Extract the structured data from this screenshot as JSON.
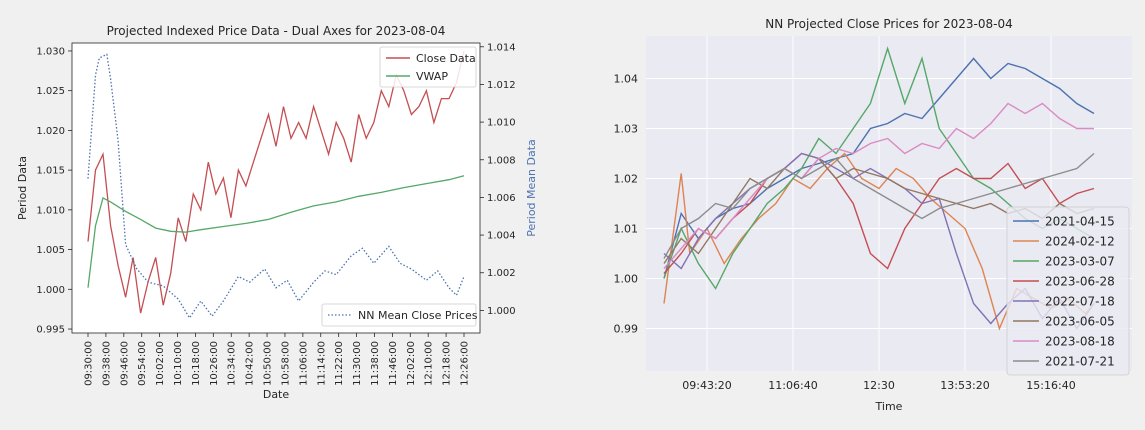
{
  "chart_data": [
    {
      "type": "line",
      "title": "Projected Indexed Price Data  - Dual Axes for 2023-08-04",
      "xlabel": "Date",
      "ylabel": "Period Data",
      "ylabel_right": "Period Mean Data",
      "ylim": [
        0.9945,
        1.031
      ],
      "ylim_right": [
        0.9988,
        1.0142
      ],
      "grid": false,
      "xtick_labels": [
        "09:30:00",
        "09:38:00",
        "09:46:00",
        "09:54:00",
        "10:02:00",
        "10:10:00",
        "10:18:00",
        "10:26:00",
        "10:34:00",
        "10:42:00",
        "10:50:00",
        "10:58:00",
        "11:06:00",
        "11:14:00",
        "11:22:00",
        "11:30:00",
        "11:38:00",
        "11:46:00",
        "12:02:00",
        "12:10:00",
        "12:18:00",
        "12:26:00"
      ],
      "ytick_labels": [
        "0.995",
        "1.000",
        "1.005",
        "1.010",
        "1.015",
        "1.020",
        "1.025",
        "1.030"
      ],
      "ytick_values": [
        0.995,
        1.0,
        1.005,
        1.01,
        1.015,
        1.02,
        1.025,
        1.03
      ],
      "ytick_right_labels": [
        "1.000",
        "1.002",
        "1.004",
        "1.006",
        "1.008",
        "1.010",
        "1.012",
        "1.014"
      ],
      "ytick_right_values": [
        1.0,
        1.002,
        1.004,
        1.006,
        1.008,
        1.01,
        1.012,
        1.014
      ],
      "legend_top": {
        "placement": "top-right",
        "items": [
          "Close Data",
          "VWAP"
        ]
      },
      "legend_bottom": {
        "placement": "bottom-right",
        "items": [
          "NN Mean Close Prices"
        ]
      },
      "series": [
        {
          "name": "Close Data",
          "axis": "left",
          "color": "#c44e52",
          "style": "solid",
          "x": [
            0,
            0.02,
            0.04,
            0.06,
            0.08,
            0.1,
            0.12,
            0.14,
            0.16,
            0.18,
            0.2,
            0.22,
            0.24,
            0.26,
            0.28,
            0.3,
            0.32,
            0.34,
            0.36,
            0.38,
            0.4,
            0.42,
            0.44,
            0.46,
            0.48,
            0.5,
            0.52,
            0.54,
            0.56,
            0.58,
            0.6,
            0.62,
            0.64,
            0.66,
            0.68,
            0.7,
            0.72,
            0.74,
            0.76,
            0.78,
            0.8,
            0.82,
            0.84,
            0.86,
            0.88,
            0.9,
            0.92,
            0.94,
            0.96,
            0.98,
            1.0
          ],
          "y": [
            1.006,
            1.015,
            1.017,
            1.008,
            1.003,
            0.999,
            1.004,
            0.997,
            1.001,
            1.004,
            0.998,
            1.002,
            1.009,
            1.006,
            1.012,
            1.01,
            1.016,
            1.012,
            1.014,
            1.009,
            1.015,
            1.013,
            1.016,
            1.019,
            1.022,
            1.018,
            1.023,
            1.019,
            1.021,
            1.019,
            1.023,
            1.02,
            1.017,
            1.021,
            1.019,
            1.016,
            1.022,
            1.019,
            1.021,
            1.025,
            1.023,
            1.027,
            1.025,
            1.022,
            1.023,
            1.025,
            1.021,
            1.024,
            1.024,
            1.026,
            1.03
          ]
        },
        {
          "name": "VWAP",
          "axis": "left",
          "color": "#55a868",
          "style": "solid",
          "x": [
            0,
            0.02,
            0.04,
            0.06,
            0.1,
            0.14,
            0.18,
            0.22,
            0.26,
            0.3,
            0.36,
            0.42,
            0.48,
            0.54,
            0.6,
            0.66,
            0.72,
            0.78,
            0.84,
            0.9,
            0.96,
            1.0
          ],
          "y": [
            1.0002,
            1.008,
            1.0115,
            1.011,
            1.0098,
            1.0088,
            1.0077,
            1.0073,
            1.0072,
            1.0075,
            1.0079,
            1.0083,
            1.0088,
            1.0097,
            1.0105,
            1.011,
            1.0117,
            1.0122,
            1.0128,
            1.0133,
            1.0138,
            1.0143
          ]
        },
        {
          "name": "NN Mean Close Prices",
          "axis": "right",
          "color": "#4c72b0",
          "style": "dotted",
          "x": [
            0,
            0.02,
            0.03,
            0.05,
            0.06,
            0.08,
            0.1,
            0.13,
            0.16,
            0.2,
            0.24,
            0.27,
            0.3,
            0.33,
            0.36,
            0.4,
            0.43,
            0.47,
            0.5,
            0.53,
            0.56,
            0.6,
            0.63,
            0.66,
            0.7,
            0.73,
            0.76,
            0.8,
            0.83,
            0.86,
            0.9,
            0.93,
            0.96,
            0.98,
            1.0
          ],
          "y": [
            1.007,
            1.0125,
            1.0134,
            1.0136,
            1.0123,
            1.009,
            1.0035,
            1.0022,
            1.0015,
            1.0013,
            1.0006,
            0.9996,
            1.0005,
            0.9997,
            1.0005,
            1.0018,
            1.0015,
            1.0022,
            1.0012,
            1.0016,
            1.0005,
            1.0015,
            1.0021,
            1.0019,
            1.0029,
            1.0033,
            1.0025,
            1.0034,
            1.0025,
            1.0022,
            1.0016,
            1.0021,
            1.0012,
            1.0008,
            1.0018
          ]
        }
      ]
    },
    {
      "type": "line",
      "title": "NN Projected Close Prices for 2023-08-04",
      "xlabel": "Time",
      "ylabel": "",
      "ylim": [
        0.9815,
        1.0485
      ],
      "xlim": [
        0,
        1
      ],
      "grid": true,
      "xtick_labels": [
        "09:43:20",
        "11:06:40",
        "12:30",
        "13:53:20",
        "15:16:40"
      ],
      "xtick_positions": [
        0.1,
        0.3,
        0.5,
        0.7,
        0.9
      ],
      "ytick_labels": [
        "0.99",
        "1.00",
        "1.01",
        "1.02",
        "1.03",
        "1.04"
      ],
      "ytick_values": [
        0.99,
        1.0,
        1.01,
        1.02,
        1.03,
        1.04
      ],
      "legend": {
        "placement": "lower-right",
        "items": [
          "2021-04-15",
          "2024-02-12",
          "2023-03-07",
          "2023-06-28",
          "2022-07-18",
          "2023-06-05",
          "2023-08-18",
          "2021-07-21"
        ]
      },
      "series": [
        {
          "name": "2021-04-15",
          "color": "#4c72b0",
          "x": [
            0,
            0.04,
            0.08,
            0.12,
            0.16,
            0.2,
            0.24,
            0.28,
            0.32,
            0.36,
            0.4,
            0.44,
            0.48,
            0.52,
            0.56,
            0.6,
            0.64,
            0.68,
            0.72,
            0.76,
            0.8,
            0.84,
            0.88,
            0.92,
            0.96,
            1.0
          ],
          "y": [
            1.0,
            1.013,
            1.008,
            1.012,
            1.014,
            1.015,
            1.018,
            1.02,
            1.022,
            1.023,
            1.024,
            1.025,
            1.03,
            1.031,
            1.033,
            1.032,
            1.036,
            1.04,
            1.044,
            1.04,
            1.043,
            1.042,
            1.04,
            1.038,
            1.035,
            1.033
          ]
        },
        {
          "name": "2024-02-12",
          "color": "#dd8452",
          "x": [
            0,
            0.04,
            0.06,
            0.1,
            0.14,
            0.18,
            0.22,
            0.26,
            0.3,
            0.34,
            0.38,
            0.42,
            0.46,
            0.5,
            0.54,
            0.58,
            0.62,
            0.66,
            0.7,
            0.74,
            0.78,
            0.82,
            0.86,
            0.9,
            0.94,
            0.98,
            1.0
          ],
          "y": [
            0.995,
            1.021,
            1.005,
            1.01,
            1.003,
            1.008,
            1.012,
            1.015,
            1.02,
            1.018,
            1.022,
            1.025,
            1.02,
            1.018,
            1.022,
            1.02,
            1.016,
            1.013,
            1.01,
            1.002,
            0.99,
            0.998,
            0.996,
            0.994,
            0.996,
            0.993,
            0.995
          ]
        },
        {
          "name": "2023-03-07",
          "color": "#55a868",
          "x": [
            0,
            0.04,
            0.08,
            0.12,
            0.16,
            0.2,
            0.24,
            0.28,
            0.32,
            0.36,
            0.4,
            0.44,
            0.48,
            0.52,
            0.56,
            0.6,
            0.64,
            0.68,
            0.72,
            0.76,
            0.8,
            0.84,
            0.88,
            0.92,
            0.96,
            1.0
          ],
          "y": [
            1.0,
            1.01,
            1.003,
            0.998,
            1.005,
            1.01,
            1.015,
            1.018,
            1.022,
            1.028,
            1.025,
            1.03,
            1.035,
            1.046,
            1.035,
            1.044,
            1.03,
            1.025,
            1.02,
            1.018,
            1.015,
            1.012,
            1.01,
            1.012,
            1.01,
            1.008
          ]
        },
        {
          "name": "2023-06-28",
          "color": "#c44e52",
          "x": [
            0,
            0.04,
            0.08,
            0.12,
            0.16,
            0.2,
            0.24,
            0.28,
            0.32,
            0.36,
            0.4,
            0.44,
            0.48,
            0.52,
            0.56,
            0.6,
            0.64,
            0.68,
            0.72,
            0.76,
            0.8,
            0.84,
            0.88,
            0.92,
            0.96,
            1.0
          ],
          "y": [
            1.001,
            1.005,
            1.01,
            1.008,
            1.012,
            1.015,
            1.02,
            1.022,
            1.025,
            1.024,
            1.02,
            1.015,
            1.005,
            1.002,
            1.01,
            1.015,
            1.02,
            1.022,
            1.02,
            1.02,
            1.023,
            1.018,
            1.02,
            1.015,
            1.017,
            1.018
          ]
        },
        {
          "name": "2022-07-18",
          "color": "#8172b3",
          "x": [
            0,
            0.04,
            0.08,
            0.12,
            0.16,
            0.2,
            0.24,
            0.28,
            0.32,
            0.36,
            0.4,
            0.44,
            0.48,
            0.52,
            0.56,
            0.6,
            0.64,
            0.68,
            0.72,
            0.76,
            0.8,
            0.84,
            0.88,
            0.92,
            0.96,
            1.0
          ],
          "y": [
            1.005,
            1.002,
            1.008,
            1.012,
            1.015,
            1.018,
            1.02,
            1.022,
            1.025,
            1.024,
            1.022,
            1.02,
            1.022,
            1.02,
            1.018,
            1.015,
            1.016,
            1.005,
            0.995,
            0.991,
            0.995,
            0.998,
            0.992,
            0.996,
            0.99,
            0.995
          ]
        },
        {
          "name": "2023-06-05",
          "color": "#937860",
          "x": [
            0,
            0.04,
            0.08,
            0.12,
            0.16,
            0.2,
            0.24,
            0.28,
            0.32,
            0.36,
            0.4,
            0.44,
            0.48,
            0.52,
            0.56,
            0.6,
            0.64,
            0.68,
            0.72,
            0.76,
            0.8,
            0.84,
            0.88,
            0.92,
            0.96,
            1.0
          ],
          "y": [
            1.003,
            1.008,
            1.005,
            1.01,
            1.015,
            1.02,
            1.018,
            1.022,
            1.02,
            1.024,
            1.02,
            1.022,
            1.021,
            1.02,
            1.018,
            1.017,
            1.016,
            1.015,
            1.014,
            1.015,
            1.013,
            1.014,
            1.012,
            1.015,
            1.013,
            1.014
          ]
        },
        {
          "name": "2023-08-18",
          "color": "#da8bc3",
          "x": [
            0,
            0.04,
            0.08,
            0.12,
            0.16,
            0.2,
            0.24,
            0.28,
            0.32,
            0.36,
            0.4,
            0.44,
            0.48,
            0.52,
            0.56,
            0.6,
            0.64,
            0.68,
            0.72,
            0.76,
            0.8,
            0.84,
            0.88,
            0.92,
            0.96,
            1.0
          ],
          "y": [
            1.002,
            1.006,
            1.01,
            1.008,
            1.012,
            1.016,
            1.02,
            1.022,
            1.02,
            1.024,
            1.026,
            1.025,
            1.027,
            1.028,
            1.025,
            1.027,
            1.026,
            1.03,
            1.028,
            1.031,
            1.035,
            1.033,
            1.035,
            1.032,
            1.03,
            1.03
          ]
        },
        {
          "name": "2021-07-21",
          "color": "#8c8c8c",
          "x": [
            0,
            0.04,
            0.08,
            0.12,
            0.16,
            0.2,
            0.24,
            0.28,
            0.32,
            0.36,
            0.4,
            0.44,
            0.48,
            0.52,
            0.56,
            0.6,
            0.64,
            0.68,
            0.72,
            0.76,
            0.8,
            0.84,
            0.88,
            0.92,
            0.96,
            1.0
          ],
          "y": [
            1.004,
            1.01,
            1.012,
            1.015,
            1.014,
            1.018,
            1.02,
            1.022,
            1.02,
            1.022,
            1.024,
            1.02,
            1.018,
            1.016,
            1.014,
            1.012,
            1.014,
            1.015,
            1.016,
            1.017,
            1.018,
            1.019,
            1.02,
            1.021,
            1.022,
            1.025
          ]
        }
      ]
    }
  ]
}
